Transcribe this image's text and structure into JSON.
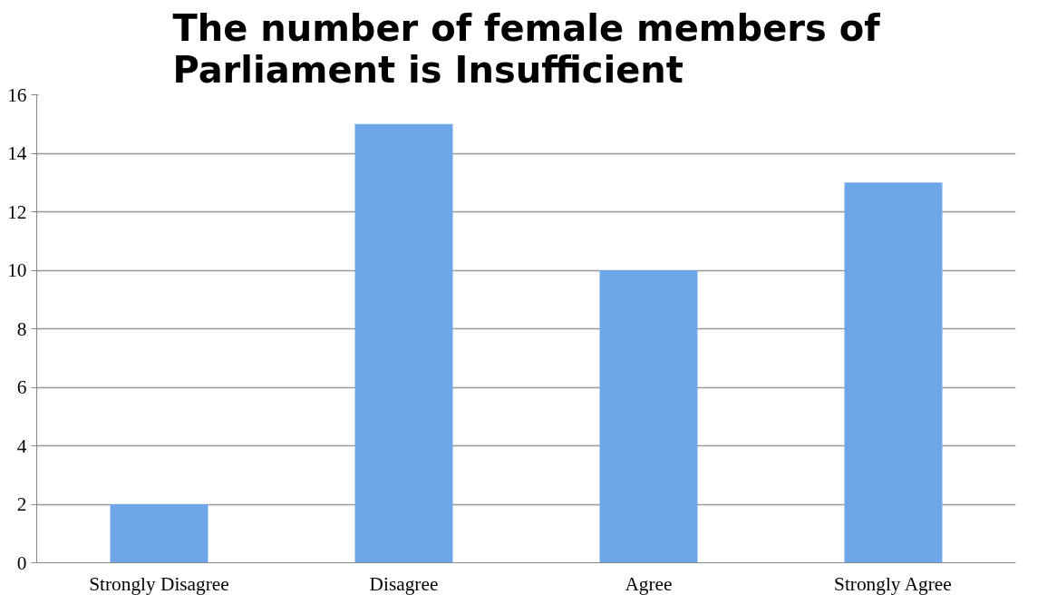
{
  "chart_data": {
    "type": "bar",
    "title": "The number of female members of Parliament is Insufficient",
    "categories": [
      "Strongly Disagree",
      "Disagree",
      "Agree",
      "Strongly Agree"
    ],
    "values": [
      2,
      15,
      10,
      13
    ],
    "color": "#6ea6ea",
    "ylim": [
      0,
      16
    ],
    "yticks": [
      0,
      2,
      4,
      6,
      8,
      10,
      12,
      14,
      16
    ],
    "grid": "y"
  }
}
